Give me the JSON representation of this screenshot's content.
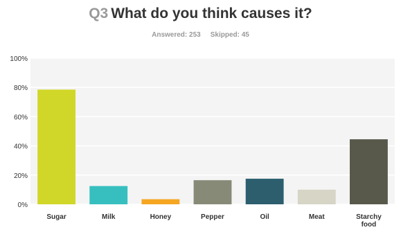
{
  "header": {
    "question_number": "Q3",
    "question_text": "What do you think causes it?",
    "answered": "Answered: 253",
    "skipped": "Skipped: 45"
  },
  "chart_data": {
    "type": "bar",
    "categories": [
      "Sugar",
      "Milk",
      "Honey",
      "Pepper",
      "Oil",
      "Meat",
      "Starchy food"
    ],
    "values": [
      78.5,
      12.5,
      3.5,
      16.5,
      17.5,
      10,
      44.5
    ],
    "colors": [
      "#d1d728",
      "#37bfbf",
      "#f5a623",
      "#888a78",
      "#2c5e6e",
      "#d6d5c6",
      "#58594a"
    ],
    "yticks": [
      "0%",
      "20%",
      "40%",
      "60%",
      "80%",
      "100%"
    ],
    "ylim": [
      0,
      100
    ],
    "grid": true,
    "plot_background": "#f4f4f4",
    "grid_color": "#ffffff"
  }
}
